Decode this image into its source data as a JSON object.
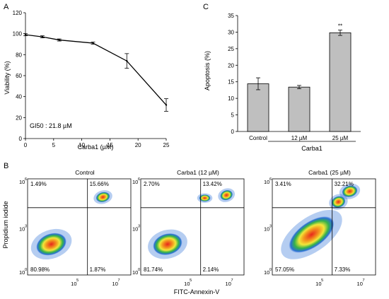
{
  "panel_labels": {
    "a": "A",
    "b": "B",
    "c": "C"
  },
  "chart_data": [
    {
      "type": "line",
      "panel": "A",
      "x": [
        0,
        3,
        6,
        12,
        18,
        25
      ],
      "y": [
        99,
        97,
        94,
        91,
        74,
        32
      ],
      "error": [
        1,
        1,
        1,
        1,
        7,
        6
      ],
      "xlabel": "Carba1 (µM)",
      "ylabel": "Viability (%)",
      "xlim": [
        0,
        25
      ],
      "ylim": [
        0,
        120
      ],
      "x_ticks": [
        "0",
        "5",
        "10",
        "15",
        "20",
        "25"
      ],
      "y_ticks": [
        "0",
        "20",
        "40",
        "60",
        "80",
        "100",
        "120"
      ],
      "annotation": "GI50 : 21.8 µM",
      "line_color": "#000000"
    },
    {
      "type": "bar",
      "panel": "C",
      "categories": [
        "Control",
        "12 µM",
        "25 µM"
      ],
      "values": [
        14.4,
        13.4,
        29.8
      ],
      "error": [
        1.8,
        0.5,
        0.8
      ],
      "significance": [
        "",
        "",
        "**"
      ],
      "group_label": "Carba1",
      "ylabel": "Apoptosis (%)",
      "ylim": [
        0,
        35
      ],
      "y_ticks": [
        "0",
        "5",
        "10",
        "15",
        "20",
        "25",
        "30",
        "35"
      ],
      "bar_color": "#bfbfbf"
    },
    {
      "type": "scatter",
      "panel": "B",
      "xlabel": "FITC-Annexin-V",
      "ylabel": "Propidium iodide",
      "tick_base": "10",
      "x_tick_exponents": [
        "5",
        "7"
      ],
      "y_tick_exponents": [
        "6",
        "3",
        "0"
      ],
      "plots": [
        {
          "title": "Control",
          "quadrants": {
            "upper_left": "1.49%",
            "upper_right": "15.66%",
            "lower_left": "80.98%",
            "lower_right": "1.87%"
          }
        },
        {
          "title": "Carba1 (12 µM)",
          "quadrants": {
            "upper_left": "2.70%",
            "upper_right": "13.42%",
            "lower_left": "81.74%",
            "lower_right": "2.14%"
          }
        },
        {
          "title": "Carba1 (25 µM)",
          "quadrants": {
            "upper_left": "3.41%",
            "upper_right": "32.21%",
            "lower_left": "57.05%",
            "lower_right": "7.33%"
          }
        }
      ]
    }
  ]
}
